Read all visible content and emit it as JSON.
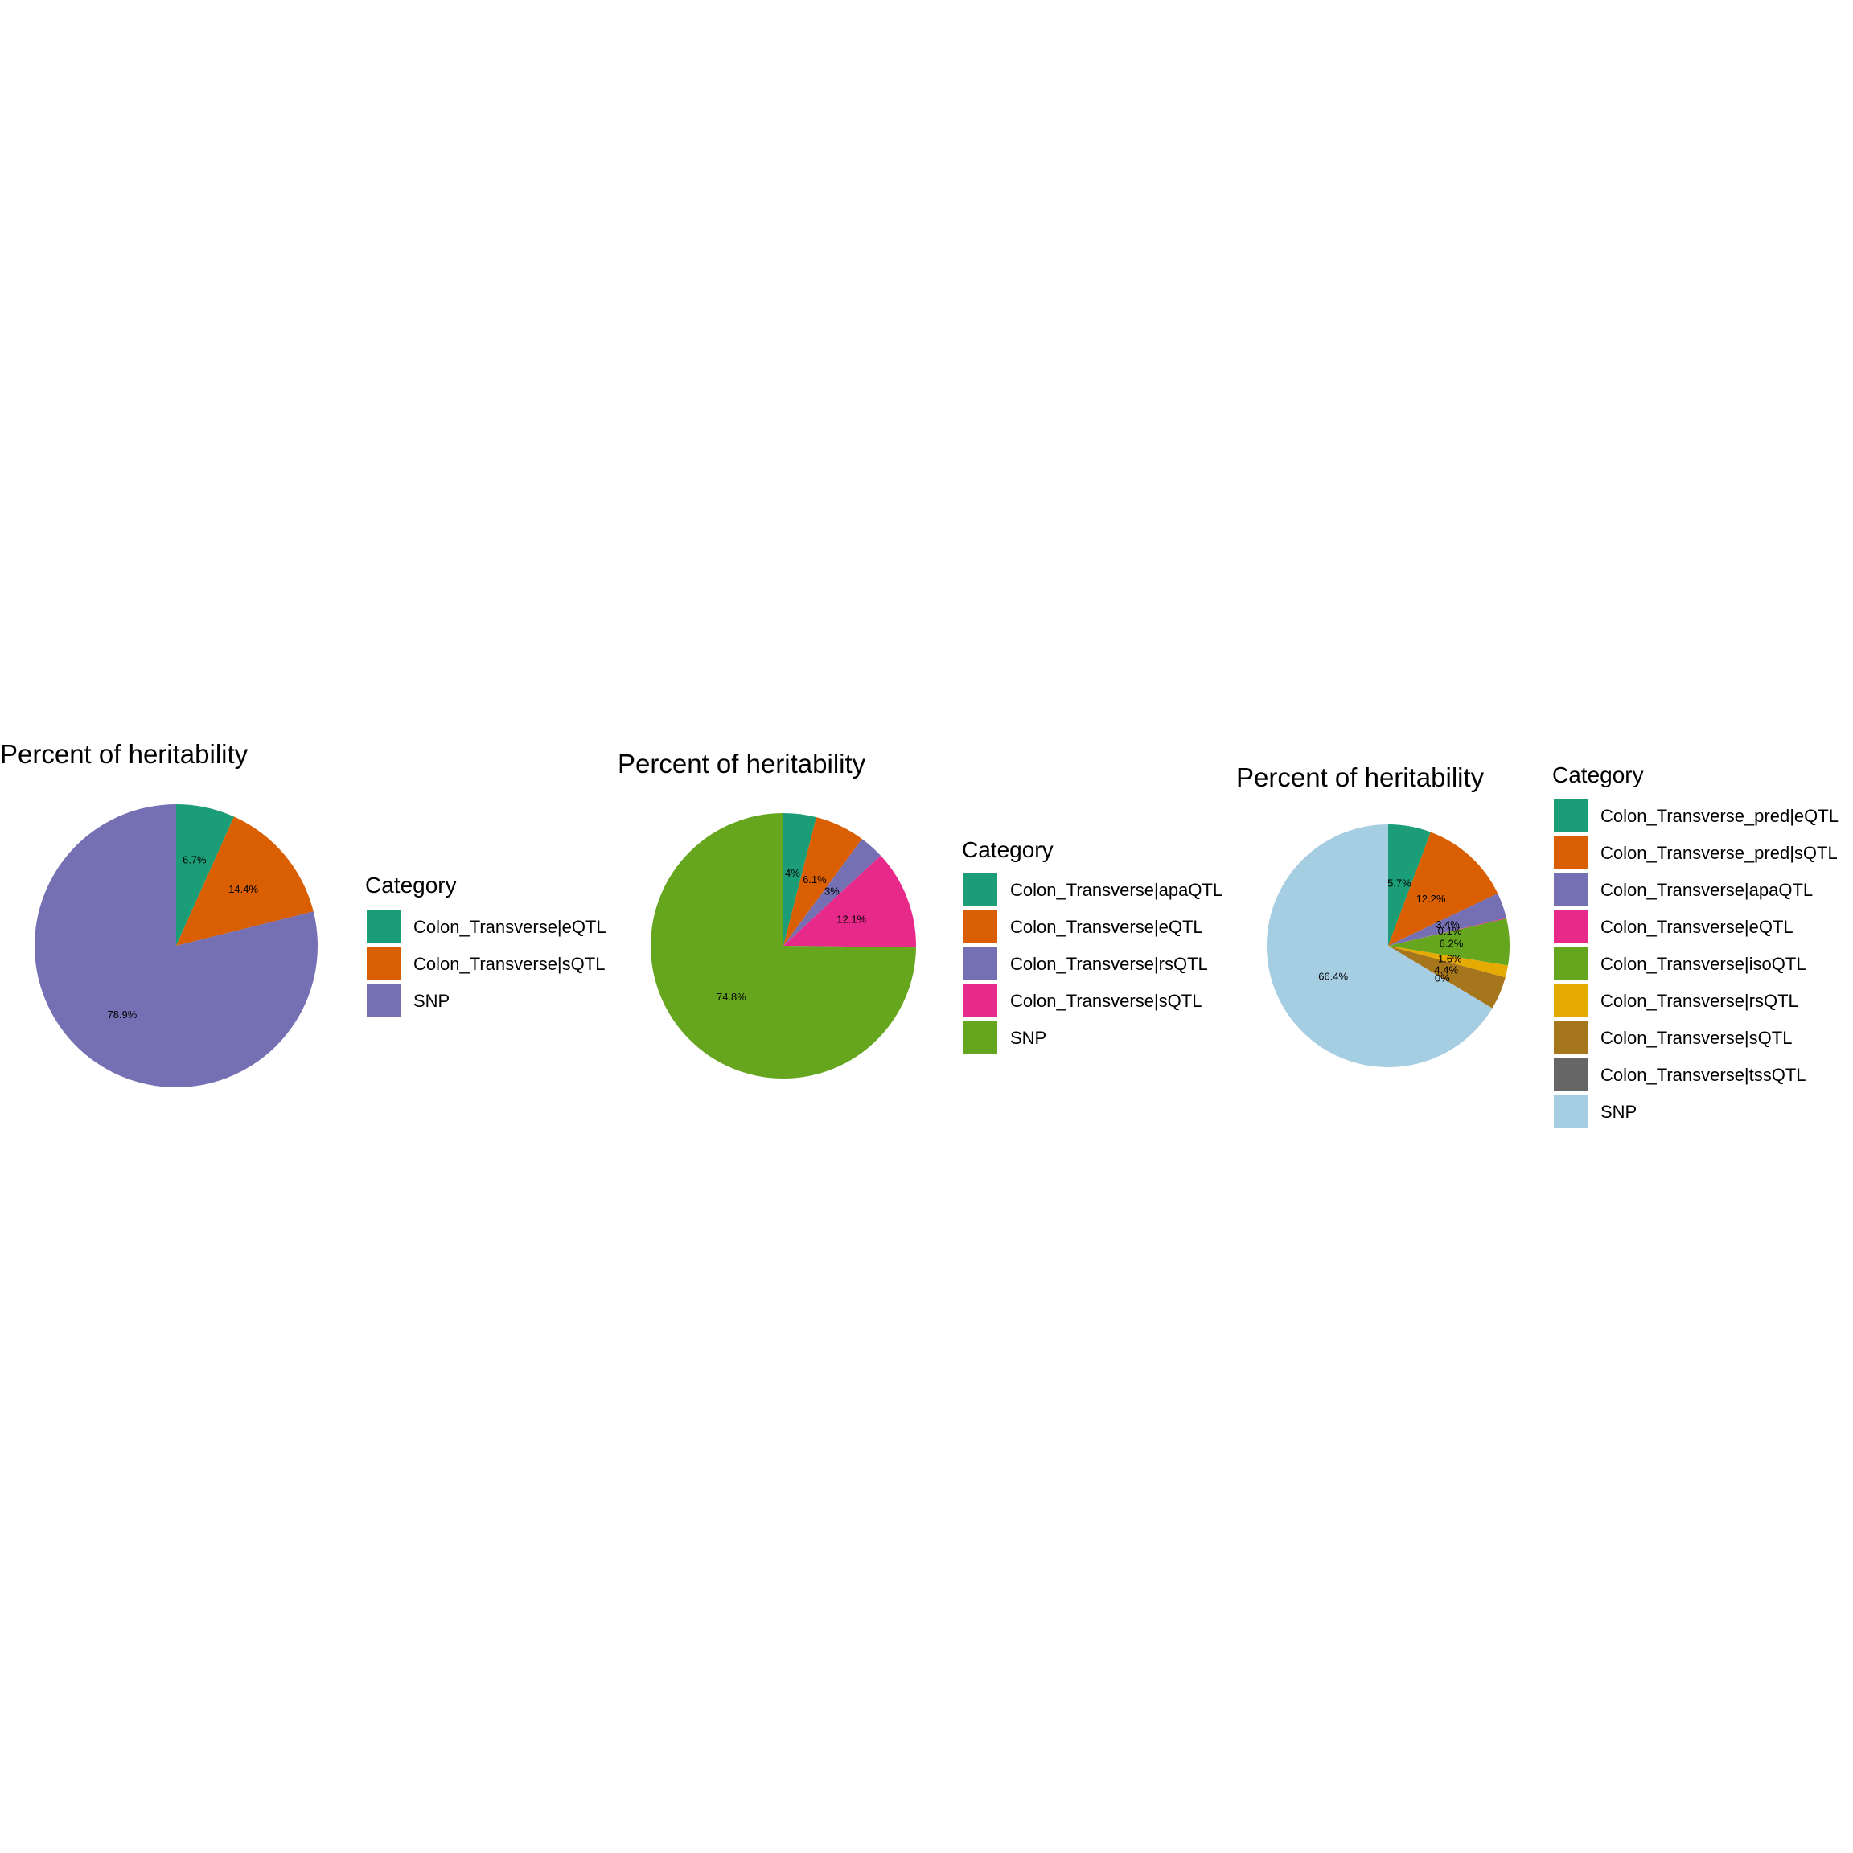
{
  "chart_data": [
    {
      "type": "pie",
      "title": "Percent of heritability",
      "legend_title": "Category",
      "legend_placement": "right",
      "start_angle": "12 o'clock, clockwise",
      "slices": [
        {
          "name": "Colon_Transverse|eQTL",
          "value": 6.7,
          "label": "6.7%",
          "color": "#1B9E77"
        },
        {
          "name": "Colon_Transverse|sQTL",
          "value": 14.4,
          "label": "14.4%",
          "color": "#D95F02"
        },
        {
          "name": "SNP",
          "value": 78.9,
          "label": "78.9%",
          "color": "#7570B3"
        }
      ]
    },
    {
      "type": "pie",
      "title": "Percent of heritability",
      "legend_title": "Category",
      "legend_placement": "right",
      "start_angle": "12 o'clock, clockwise",
      "slices": [
        {
          "name": "Colon_Transverse|apaQTL",
          "value": 4.0,
          "label": "4%",
          "color": "#1B9E77"
        },
        {
          "name": "Colon_Transverse|eQTL",
          "value": 6.1,
          "label": "6.1%",
          "color": "#D95F02"
        },
        {
          "name": "Colon_Transverse|rsQTL",
          "value": 3.0,
          "label": "3%",
          "color": "#7570B3"
        },
        {
          "name": "Colon_Transverse|sQTL",
          "value": 12.1,
          "label": "12.1%",
          "color": "#E7298A"
        },
        {
          "name": "SNP",
          "value": 74.8,
          "label": "74.8%",
          "color": "#66A61E"
        }
      ]
    },
    {
      "type": "pie",
      "title": "Percent of heritability",
      "legend_title": "Category",
      "legend_placement": "right",
      "start_angle": "12 o'clock, clockwise",
      "slices": [
        {
          "name": "Colon_Transverse_pred|eQTL",
          "value": 5.7,
          "label": "5.7%",
          "color": "#1B9E77"
        },
        {
          "name": "Colon_Transverse_pred|sQTL",
          "value": 12.2,
          "label": "12.2%",
          "color": "#D95F02"
        },
        {
          "name": "Colon_Transverse|apaQTL",
          "value": 3.4,
          "label": "3.4%",
          "color": "#7570B3"
        },
        {
          "name": "Colon_Transverse|eQTL",
          "value": 0.1,
          "label": "0.1%",
          "color": "#E7298A"
        },
        {
          "name": "Colon_Transverse|isoQTL",
          "value": 6.2,
          "label": "6.2%",
          "color": "#66A61E"
        },
        {
          "name": "Colon_Transverse|rsQTL",
          "value": 1.6,
          "label": "1.6%",
          "color": "#E6AB02"
        },
        {
          "name": "Colon_Transverse|sQTL",
          "value": 4.4,
          "label": "4.4%",
          "color": "#A6761D"
        },
        {
          "name": "Colon_Transverse|tssQTL",
          "value": 0.0,
          "label": "0%",
          "color": "#666666"
        },
        {
          "name": "SNP",
          "value": 66.4,
          "label": "66.4%",
          "color": "#A6CEE3"
        }
      ]
    }
  ]
}
